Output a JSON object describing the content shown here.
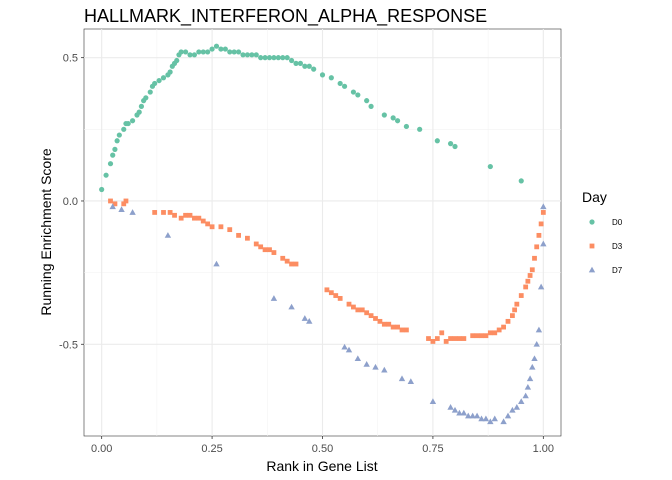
{
  "chart_data": {
    "type": "scatter",
    "title": "HALLMARK_INTERFERON_ALPHA_RESPONSE",
    "xlabel": "Rank in Gene List",
    "ylabel": "Running Enrichment Score",
    "xlim": [
      -0.04,
      1.04
    ],
    "ylim": [
      -0.82,
      0.6
    ],
    "x_ticks": [
      0,
      0.25,
      0.5,
      0.75,
      1
    ],
    "x_tick_labels": [
      "0.00",
      "0.25",
      "0.50",
      "0.75",
      "1.00"
    ],
    "y_ticks": [
      0.5,
      0,
      -0.5
    ],
    "y_tick_labels": [
      "0.5",
      "0.0",
      "-0.5"
    ],
    "grid": true,
    "legend": {
      "title": "Day",
      "position": "right"
    },
    "series": [
      {
        "name": "D0",
        "color": "#66c2a5",
        "marker": "circle",
        "points": [
          [
            0.0,
            0.04
          ],
          [
            0.01,
            0.09
          ],
          [
            0.02,
            0.13
          ],
          [
            0.025,
            0.16
          ],
          [
            0.03,
            0.18
          ],
          [
            0.035,
            0.21
          ],
          [
            0.04,
            0.23
          ],
          [
            0.05,
            0.25
          ],
          [
            0.055,
            0.27
          ],
          [
            0.06,
            0.27
          ],
          [
            0.07,
            0.28
          ],
          [
            0.08,
            0.3
          ],
          [
            0.085,
            0.31
          ],
          [
            0.09,
            0.33
          ],
          [
            0.095,
            0.35
          ],
          [
            0.1,
            0.36
          ],
          [
            0.11,
            0.38
          ],
          [
            0.115,
            0.4
          ],
          [
            0.12,
            0.41
          ],
          [
            0.13,
            0.42
          ],
          [
            0.14,
            0.43
          ],
          [
            0.15,
            0.44
          ],
          [
            0.155,
            0.45
          ],
          [
            0.16,
            0.47
          ],
          [
            0.165,
            0.48
          ],
          [
            0.17,
            0.49
          ],
          [
            0.175,
            0.51
          ],
          [
            0.18,
            0.52
          ],
          [
            0.19,
            0.52
          ],
          [
            0.2,
            0.51
          ],
          [
            0.21,
            0.51
          ],
          [
            0.22,
            0.52
          ],
          [
            0.23,
            0.52
          ],
          [
            0.24,
            0.52
          ],
          [
            0.25,
            0.53
          ],
          [
            0.26,
            0.54
          ],
          [
            0.27,
            0.53
          ],
          [
            0.28,
            0.53
          ],
          [
            0.29,
            0.52
          ],
          [
            0.3,
            0.52
          ],
          [
            0.31,
            0.52
          ],
          [
            0.32,
            0.51
          ],
          [
            0.33,
            0.51
          ],
          [
            0.34,
            0.51
          ],
          [
            0.35,
            0.51
          ],
          [
            0.36,
            0.5
          ],
          [
            0.37,
            0.5
          ],
          [
            0.38,
            0.5
          ],
          [
            0.39,
            0.5
          ],
          [
            0.4,
            0.5
          ],
          [
            0.41,
            0.5
          ],
          [
            0.42,
            0.5
          ],
          [
            0.43,
            0.49
          ],
          [
            0.44,
            0.48
          ],
          [
            0.45,
            0.48
          ],
          [
            0.46,
            0.47
          ],
          [
            0.47,
            0.47
          ],
          [
            0.48,
            0.46
          ],
          [
            0.5,
            0.44
          ],
          [
            0.52,
            0.43
          ],
          [
            0.54,
            0.41
          ],
          [
            0.55,
            0.4
          ],
          [
            0.57,
            0.38
          ],
          [
            0.58,
            0.37
          ],
          [
            0.6,
            0.35
          ],
          [
            0.61,
            0.33
          ],
          [
            0.64,
            0.3
          ],
          [
            0.66,
            0.29
          ],
          [
            0.67,
            0.28
          ],
          [
            0.69,
            0.26
          ],
          [
            0.72,
            0.25
          ],
          [
            0.76,
            0.21
          ],
          [
            0.79,
            0.2
          ],
          [
            0.8,
            0.19
          ],
          [
            0.88,
            0.12
          ],
          [
            0.95,
            0.07
          ]
        ]
      },
      {
        "name": "D3",
        "color": "#fc8d62",
        "marker": "square",
        "points": [
          [
            0.02,
            0.0
          ],
          [
            0.03,
            -0.01
          ],
          [
            0.05,
            -0.01
          ],
          [
            0.055,
            0.0
          ],
          [
            0.12,
            -0.04
          ],
          [
            0.14,
            -0.04
          ],
          [
            0.155,
            -0.04
          ],
          [
            0.165,
            -0.05
          ],
          [
            0.18,
            -0.06
          ],
          [
            0.19,
            -0.05
          ],
          [
            0.2,
            -0.05
          ],
          [
            0.21,
            -0.06
          ],
          [
            0.22,
            -0.06
          ],
          [
            0.23,
            -0.07
          ],
          [
            0.24,
            -0.08
          ],
          [
            0.25,
            -0.09
          ],
          [
            0.27,
            -0.09
          ],
          [
            0.29,
            -0.1
          ],
          [
            0.31,
            -0.12
          ],
          [
            0.33,
            -0.13
          ],
          [
            0.35,
            -0.15
          ],
          [
            0.36,
            -0.16
          ],
          [
            0.37,
            -0.17
          ],
          [
            0.38,
            -0.17
          ],
          [
            0.39,
            -0.18
          ],
          [
            0.41,
            -0.2
          ],
          [
            0.42,
            -0.21
          ],
          [
            0.43,
            -0.22
          ],
          [
            0.44,
            -0.22
          ],
          [
            0.51,
            -0.31
          ],
          [
            0.52,
            -0.32
          ],
          [
            0.53,
            -0.33
          ],
          [
            0.54,
            -0.34
          ],
          [
            0.56,
            -0.36
          ],
          [
            0.57,
            -0.37
          ],
          [
            0.58,
            -0.38
          ],
          [
            0.59,
            -0.38
          ],
          [
            0.6,
            -0.39
          ],
          [
            0.61,
            -0.4
          ],
          [
            0.62,
            -0.41
          ],
          [
            0.63,
            -0.42
          ],
          [
            0.64,
            -0.43
          ],
          [
            0.65,
            -0.43
          ],
          [
            0.66,
            -0.44
          ],
          [
            0.67,
            -0.44
          ],
          [
            0.68,
            -0.45
          ],
          [
            0.69,
            -0.45
          ],
          [
            0.74,
            -0.48
          ],
          [
            0.75,
            -0.49
          ],
          [
            0.76,
            -0.48
          ],
          [
            0.77,
            -0.46
          ],
          [
            0.78,
            -0.49
          ],
          [
            0.79,
            -0.48
          ],
          [
            0.8,
            -0.48
          ],
          [
            0.81,
            -0.48
          ],
          [
            0.82,
            -0.48
          ],
          [
            0.84,
            -0.47
          ],
          [
            0.85,
            -0.47
          ],
          [
            0.86,
            -0.47
          ],
          [
            0.87,
            -0.47
          ],
          [
            0.88,
            -0.46
          ],
          [
            0.89,
            -0.46
          ],
          [
            0.9,
            -0.45
          ],
          [
            0.91,
            -0.44
          ],
          [
            0.92,
            -0.42
          ],
          [
            0.93,
            -0.4
          ],
          [
            0.935,
            -0.38
          ],
          [
            0.94,
            -0.36
          ],
          [
            0.95,
            -0.33
          ],
          [
            0.96,
            -0.3
          ],
          [
            0.965,
            -0.28
          ],
          [
            0.97,
            -0.26
          ],
          [
            0.975,
            -0.24
          ],
          [
            0.98,
            -0.2
          ],
          [
            0.985,
            -0.16
          ],
          [
            0.99,
            -0.12
          ],
          [
            0.995,
            -0.08
          ],
          [
            1.0,
            -0.04
          ]
        ]
      },
      {
        "name": "D7",
        "color": "#8da0cb",
        "marker": "triangle",
        "points": [
          [
            0.025,
            -0.02
          ],
          [
            0.045,
            -0.03
          ],
          [
            0.07,
            -0.04
          ],
          [
            0.15,
            -0.12
          ],
          [
            0.26,
            -0.22
          ],
          [
            0.39,
            -0.34
          ],
          [
            0.43,
            -0.37
          ],
          [
            0.46,
            -0.41
          ],
          [
            0.47,
            -0.42
          ],
          [
            0.55,
            -0.51
          ],
          [
            0.56,
            -0.52
          ],
          [
            0.58,
            -0.55
          ],
          [
            0.6,
            -0.57
          ],
          [
            0.62,
            -0.58
          ],
          [
            0.64,
            -0.59
          ],
          [
            0.68,
            -0.62
          ],
          [
            0.7,
            -0.63
          ],
          [
            0.75,
            -0.7
          ],
          [
            0.79,
            -0.72
          ],
          [
            0.8,
            -0.73
          ],
          [
            0.81,
            -0.74
          ],
          [
            0.82,
            -0.74
          ],
          [
            0.83,
            -0.75
          ],
          [
            0.84,
            -0.75
          ],
          [
            0.85,
            -0.75
          ],
          [
            0.86,
            -0.76
          ],
          [
            0.87,
            -0.76
          ],
          [
            0.88,
            -0.77
          ],
          [
            0.89,
            -0.76
          ],
          [
            0.91,
            -0.77
          ],
          [
            0.92,
            -0.75
          ],
          [
            0.93,
            -0.73
          ],
          [
            0.94,
            -0.72
          ],
          [
            0.95,
            -0.7
          ],
          [
            0.96,
            -0.68
          ],
          [
            0.965,
            -0.65
          ],
          [
            0.97,
            -0.62
          ],
          [
            0.975,
            -0.58
          ],
          [
            0.98,
            -0.55
          ],
          [
            0.985,
            -0.5
          ],
          [
            0.99,
            -0.45
          ],
          [
            0.995,
            -0.3
          ],
          [
            1.0,
            -0.15
          ],
          [
            1.0,
            -0.02
          ]
        ]
      }
    ]
  }
}
